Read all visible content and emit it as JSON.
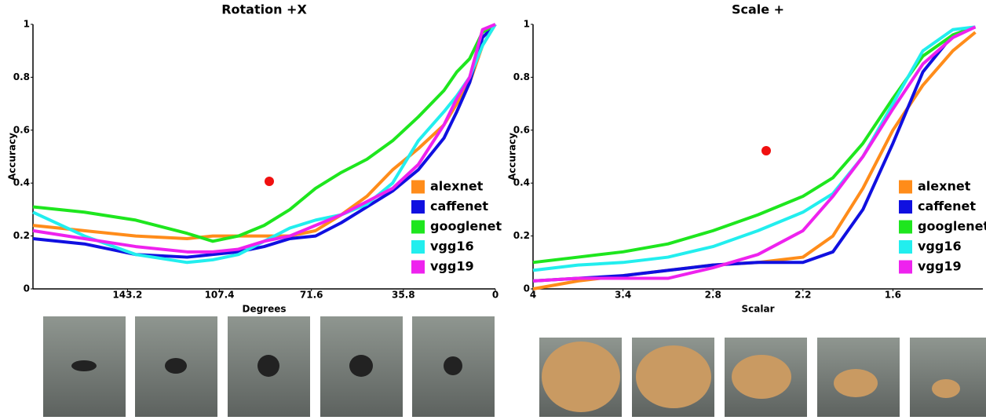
{
  "chart_data": [
    {
      "type": "line",
      "title": "Rotation +X",
      "x_label": "Degrees",
      "y_label": "Accuracy",
      "x": [
        180,
        160,
        140,
        120,
        110,
        100,
        90,
        80,
        70,
        60,
        50,
        40,
        30,
        20,
        15,
        10,
        5,
        0
      ],
      "xlim": [
        180,
        0
      ],
      "xticks": [
        143.2,
        107.4,
        71.6,
        35.8,
        0
      ],
      "ylim": [
        0,
        1
      ],
      "yticks": [
        0,
        0.2,
        0.4,
        0.6,
        0.8,
        1
      ],
      "legend": "lower right",
      "series": [
        {
          "name": "alexnet",
          "color": "#ff8c1a",
          "values": [
            0.24,
            0.22,
            0.2,
            0.19,
            0.2,
            0.2,
            0.2,
            0.2,
            0.22,
            0.28,
            0.35,
            0.45,
            0.53,
            0.62,
            0.7,
            0.78,
            0.92,
            1.0
          ]
        },
        {
          "name": "caffenet",
          "color": "#1010e0",
          "values": [
            0.19,
            0.17,
            0.13,
            0.12,
            0.13,
            0.14,
            0.16,
            0.19,
            0.2,
            0.25,
            0.31,
            0.37,
            0.45,
            0.57,
            0.67,
            0.78,
            0.95,
            1.0
          ]
        },
        {
          "name": "googlenet",
          "color": "#1ee61e",
          "values": [
            0.31,
            0.29,
            0.26,
            0.21,
            0.18,
            0.2,
            0.24,
            0.3,
            0.38,
            0.44,
            0.49,
            0.56,
            0.65,
            0.75,
            0.82,
            0.87,
            0.97,
            1.0
          ]
        },
        {
          "name": "vgg16",
          "color": "#22eeee",
          "values": [
            0.29,
            0.2,
            0.13,
            0.1,
            0.11,
            0.13,
            0.18,
            0.23,
            0.26,
            0.28,
            0.32,
            0.4,
            0.56,
            0.67,
            0.73,
            0.8,
            0.92,
            1.0
          ]
        },
        {
          "name": "vgg19",
          "color": "#ee22ee",
          "values": [
            0.22,
            0.19,
            0.16,
            0.14,
            0.14,
            0.15,
            0.18,
            0.2,
            0.24,
            0.28,
            0.33,
            0.38,
            0.47,
            0.62,
            0.72,
            0.8,
            0.98,
            1.0
          ]
        }
      ]
    },
    {
      "type": "line",
      "title": "Scale +",
      "x_label": "Scalar",
      "y_label": "Accuracy",
      "x": [
        4,
        3.7,
        3.4,
        3.1,
        2.8,
        2.5,
        2.2,
        2.0,
        1.8,
        1.6,
        1.4,
        1.2,
        1.05
      ],
      "xlim": [
        4,
        1
      ],
      "xticks": [
        4,
        3.4,
        2.8,
        2.2,
        1.6
      ],
      "ylim": [
        0,
        1
      ],
      "yticks": [
        0,
        0.2,
        0.4,
        0.6,
        0.8,
        1
      ],
      "legend": "lower right",
      "series": [
        {
          "name": "alexnet",
          "color": "#ff8c1a",
          "values": [
            0.0,
            0.03,
            0.05,
            0.07,
            0.09,
            0.1,
            0.12,
            0.2,
            0.38,
            0.6,
            0.77,
            0.9,
            0.97
          ]
        },
        {
          "name": "caffenet",
          "color": "#1010e0",
          "values": [
            0.03,
            0.04,
            0.05,
            0.07,
            0.09,
            0.1,
            0.1,
            0.14,
            0.3,
            0.55,
            0.82,
            0.96,
            0.99
          ]
        },
        {
          "name": "googlenet",
          "color": "#1ee61e",
          "values": [
            0.1,
            0.12,
            0.14,
            0.17,
            0.22,
            0.28,
            0.35,
            0.42,
            0.55,
            0.72,
            0.88,
            0.96,
            0.99
          ]
        },
        {
          "name": "vgg16",
          "color": "#22eeee",
          "values": [
            0.07,
            0.09,
            0.1,
            0.12,
            0.16,
            0.22,
            0.29,
            0.36,
            0.5,
            0.7,
            0.9,
            0.98,
            0.99
          ]
        },
        {
          "name": "vgg19",
          "color": "#ee22ee",
          "values": [
            0.03,
            0.04,
            0.04,
            0.04,
            0.08,
            0.13,
            0.22,
            0.35,
            0.5,
            0.68,
            0.85,
            0.95,
            0.99
          ]
        }
      ]
    }
  ]
}
